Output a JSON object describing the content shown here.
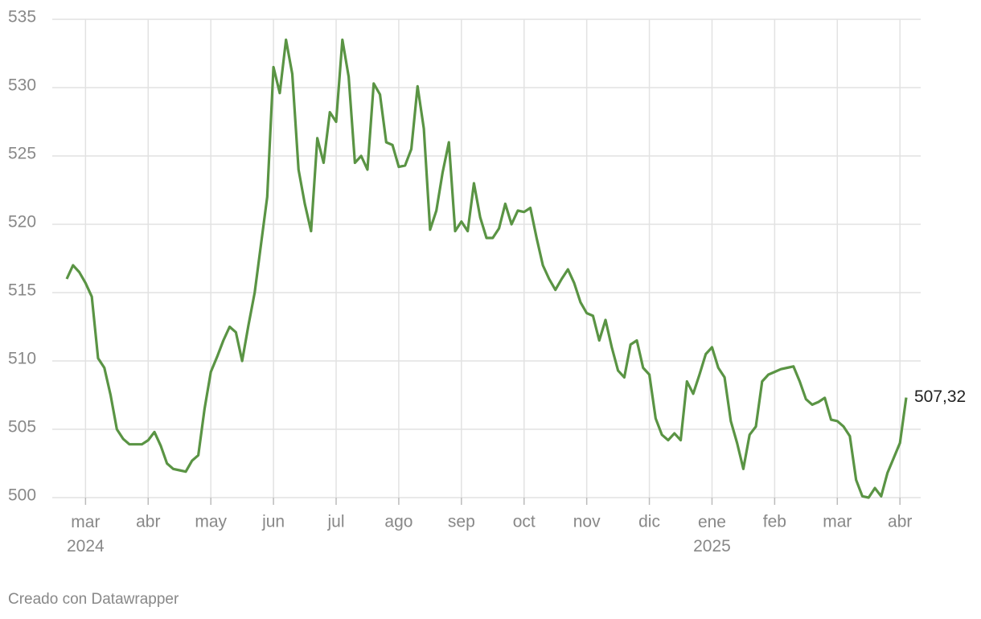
{
  "chart_data": {
    "type": "line",
    "footer": "Creado con Datawrapper",
    "color": "#5a9444",
    "grid": true,
    "ylim": [
      500,
      535
    ],
    "yticks": [
      500,
      505,
      510,
      515,
      520,
      525,
      530,
      535
    ],
    "categories": [
      null,
      null,
      null,
      "mar 2024",
      null,
      null,
      null,
      null,
      null,
      null,
      null,
      null,
      null,
      "abr",
      null,
      null,
      null,
      null,
      null,
      null,
      null,
      null,
      null,
      "may",
      null,
      null,
      null,
      null,
      null,
      null,
      null,
      null,
      null,
      "jun",
      null,
      null,
      null,
      null,
      null,
      null,
      null,
      null,
      null,
      "jul",
      null,
      null,
      null,
      null,
      null,
      null,
      null,
      null,
      null,
      "ago",
      null,
      null,
      null,
      null,
      null,
      null,
      null,
      null,
      null,
      "sep",
      null,
      null,
      null,
      null,
      null,
      null,
      null,
      null,
      null,
      "oct",
      null,
      null,
      null,
      null,
      null,
      null,
      null,
      null,
      null,
      "nov",
      null,
      null,
      null,
      null,
      null,
      null,
      null,
      null,
      null,
      "dic",
      null,
      null,
      null,
      null,
      null,
      null,
      null,
      null,
      null,
      "ene 2025",
      null,
      null,
      null,
      null,
      null,
      null,
      null,
      null,
      null,
      "feb",
      null,
      null,
      null,
      null,
      null,
      null,
      null,
      null,
      null,
      "mar",
      null,
      null,
      null,
      null,
      null,
      null,
      null,
      null,
      null,
      "abr",
      null
    ],
    "values": [
      516.0,
      517.0,
      516.5,
      515.7,
      514.7,
      510.2,
      509.5,
      507.5,
      505.0,
      504.3,
      503.9,
      503.9,
      503.9,
      504.2,
      504.8,
      503.8,
      502.5,
      502.1,
      502.0,
      501.9,
      502.7,
      503.1,
      506.5,
      509.2,
      510.3,
      511.5,
      512.5,
      512.1,
      510.0,
      512.6,
      515.0,
      518.5,
      522.0,
      531.5,
      529.6,
      533.5,
      531.0,
      524.0,
      521.5,
      519.5,
      526.3,
      524.5,
      528.2,
      527.5,
      533.5,
      530.8,
      524.5,
      525.0,
      524.0,
      530.3,
      529.5,
      526.0,
      525.8,
      524.2,
      524.3,
      525.5,
      530.1,
      527.0,
      519.6,
      521.0,
      523.8,
      526.0,
      519.5,
      520.2,
      519.5,
      523.0,
      520.5,
      519.0,
      519.0,
      519.7,
      521.5,
      520.0,
      521.0,
      520.9,
      521.2,
      519.0,
      517.0,
      516.0,
      515.2,
      516.0,
      516.7,
      515.7,
      514.3,
      513.5,
      513.3,
      511.5,
      513.0,
      511.0,
      509.3,
      508.8,
      511.2,
      511.5,
      509.5,
      509.0,
      505.8,
      504.6,
      504.2,
      504.7,
      504.2,
      508.5,
      507.6,
      509.0,
      510.5,
      511.0,
      509.5,
      508.8,
      505.6,
      504.0,
      502.1,
      504.6,
      505.2,
      508.5,
      509.0,
      509.2,
      509.4,
      509.5,
      509.6,
      508.5,
      507.2,
      506.8,
      507.0,
      507.3,
      505.7,
      505.6,
      505.2,
      504.5,
      501.3,
      500.1,
      500.0,
      500.7,
      500.1,
      501.8,
      502.9,
      504.0,
      507.32
    ],
    "value_labels": [
      null,
      null,
      null,
      null,
      null,
      null,
      null,
      null,
      null,
      null,
      null,
      null,
      null,
      null,
      null,
      null,
      null,
      null,
      null,
      null,
      null,
      null,
      null,
      null,
      null,
      null,
      null,
      null,
      null,
      null,
      null,
      null,
      null,
      null,
      null,
      null,
      null,
      null,
      null,
      null,
      null,
      null,
      null,
      null,
      null,
      null,
      null,
      null,
      null,
      null,
      null,
      null,
      null,
      null,
      null,
      null,
      null,
      null,
      null,
      null,
      null,
      null,
      null,
      null,
      null,
      null,
      null,
      null,
      null,
      null,
      null,
      null,
      null,
      null,
      null,
      null,
      null,
      null,
      null,
      null,
      null,
      null,
      null,
      null,
      null,
      null,
      null,
      null,
      null,
      null,
      null,
      null,
      null,
      null,
      null,
      null,
      null,
      null,
      null,
      null,
      null,
      null,
      null,
      null,
      null,
      null,
      null,
      null,
      null,
      null,
      null,
      null,
      null,
      null,
      null,
      null,
      null,
      null,
      null,
      null,
      null,
      null,
      null,
      null,
      null,
      null,
      null,
      null,
      null,
      null,
      null,
      null,
      null,
      null,
      "507,32"
    ]
  }
}
